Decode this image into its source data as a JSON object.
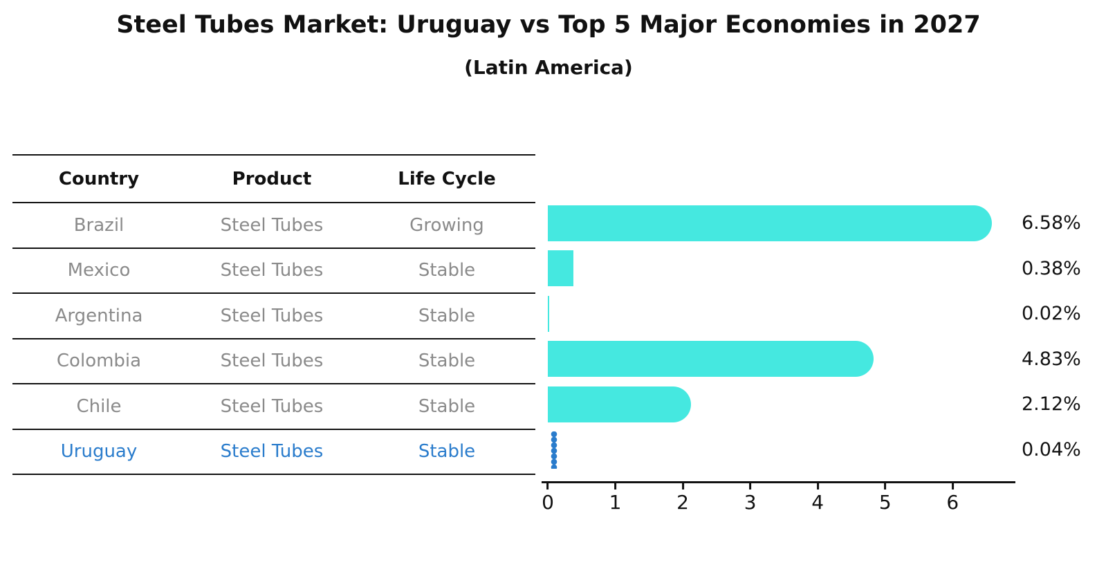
{
  "header": {
    "title": "Steel Tubes Market: Uruguay vs Top 5 Major Economies in 2027",
    "subtitle": "(Latin America)"
  },
  "table": {
    "headers": [
      "Country",
      "Product",
      "Life Cycle"
    ]
  },
  "chart_data": {
    "type": "bar",
    "orientation": "horizontal",
    "title": "Steel Tubes Market: Uruguay vs Top 5 Major Economies in 2027",
    "subtitle": "(Latin America)",
    "xlabel": "",
    "ylabel": "",
    "xlim": [
      0,
      6.93
    ],
    "x_ticks": [
      0,
      1,
      2,
      3,
      4,
      5,
      6
    ],
    "grid": false,
    "legend": "none",
    "rows": [
      {
        "country": "Brazil",
        "product": "Steel Tubes",
        "life_cycle": "Growing",
        "value": 6.58,
        "label": "6.58%",
        "bar_style": "rounded",
        "highlight": false
      },
      {
        "country": "Mexico",
        "product": "Steel Tubes",
        "life_cycle": "Stable",
        "value": 0.38,
        "label": "0.38%",
        "bar_style": "square",
        "highlight": false
      },
      {
        "country": "Argentina",
        "product": "Steel Tubes",
        "life_cycle": "Stable",
        "value": 0.02,
        "label": "0.02%",
        "bar_style": "square",
        "highlight": false
      },
      {
        "country": "Colombia",
        "product": "Steel Tubes",
        "life_cycle": "Stable",
        "value": 4.83,
        "label": "4.83%",
        "bar_style": "rounded",
        "highlight": false
      },
      {
        "country": "Chile",
        "product": "Steel Tubes",
        "life_cycle": "Stable",
        "value": 2.12,
        "label": "2.12%",
        "bar_style": "rounded",
        "highlight": false
      },
      {
        "country": "Uruguay",
        "product": "Steel Tubes",
        "life_cycle": "Stable",
        "value": 0.04,
        "label": "0.04%",
        "bar_style": "dotted-marker",
        "highlight": true
      }
    ],
    "colors": {
      "bar": "#45E8E0",
      "highlight": "#2A7CCC",
      "table_text": "#8a8a8a",
      "axis_text": "#111111"
    }
  }
}
